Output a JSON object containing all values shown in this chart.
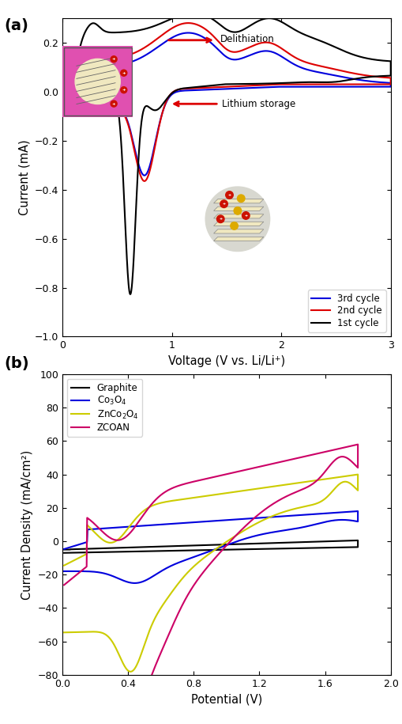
{
  "fig_width": 5.1,
  "fig_height": 9.15,
  "dpi": 100,
  "panel_a": {
    "xlabel": "Voltage (V vs. Li/Li⁺)",
    "ylabel": "Current (mA)",
    "xlim": [
      0,
      3
    ],
    "ylim": [
      -1.0,
      0.3
    ],
    "xticks": [
      0,
      1,
      2,
      3
    ],
    "yticks": [
      -1.0,
      -0.8,
      -0.6,
      -0.4,
      -0.2,
      0.0,
      0.2
    ],
    "legend": [
      "1st cycle",
      "2nd cycle",
      "3rd cycle"
    ],
    "colors": [
      "#000000",
      "#dd0000",
      "#0000dd"
    ],
    "lw": 1.5,
    "annotation_delithiation": "Delithiation",
    "annotation_lithium": "Lithium storage",
    "arrow_color": "#dd0000"
  },
  "panel_b": {
    "xlabel": "Potential (V)",
    "ylabel": "Current Density (mA/cm²)",
    "xlim": [
      0.0,
      2.0
    ],
    "ylim": [
      -80,
      100
    ],
    "xticks": [
      0.0,
      0.4,
      0.8,
      1.2,
      1.6,
      2.0
    ],
    "yticks": [
      -80,
      -60,
      -40,
      -20,
      0,
      20,
      40,
      60,
      80,
      100
    ],
    "legend": [
      "Graphite",
      "Co$_3$O$_4$",
      "ZnCo$_2$O$_4$",
      "ZCOAN"
    ],
    "colors": [
      "#000000",
      "#0000dd",
      "#cccc00",
      "#cc0066"
    ],
    "lw": 1.5
  }
}
